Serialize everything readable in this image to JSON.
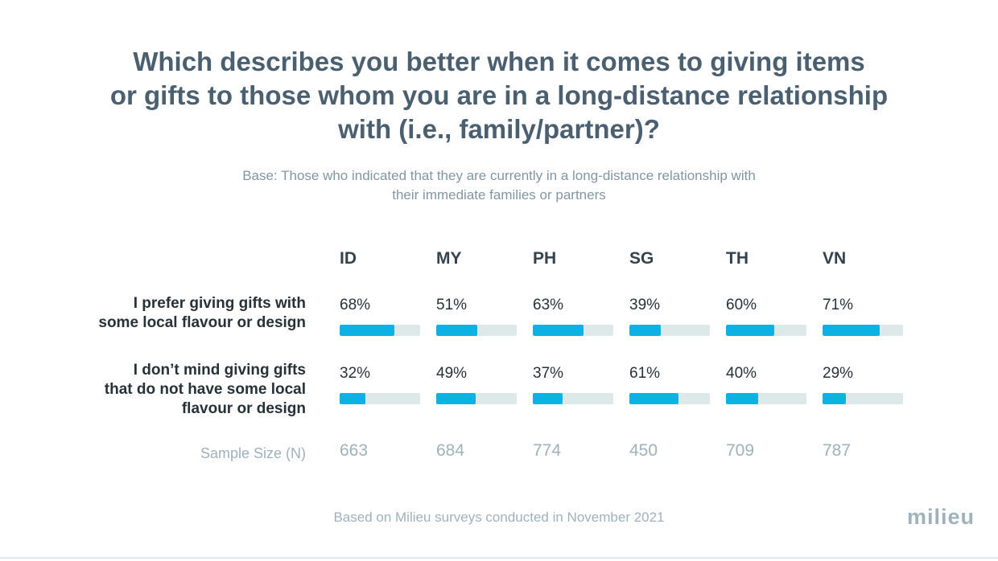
{
  "title": {
    "line1": "Which describes you better when it comes to giving items",
    "line2": "or gifts to those whom you are in a long-distance relationship",
    "line3": "with (i.e., family/partner)?"
  },
  "subtitle": {
    "line1": "Base: Those who indicated that they are currently in a long-distance relationship with",
    "line2": "their immediate families or partners"
  },
  "chart_data": {
    "type": "bar",
    "categories": [
      "ID",
      "MY",
      "PH",
      "SG",
      "TH",
      "VN"
    ],
    "series": [
      {
        "name_lines": [
          "I prefer giving gifts with",
          "some local flavour or design"
        ],
        "values": [
          68,
          51,
          63,
          39,
          60,
          71
        ],
        "labels": [
          "68%",
          "51%",
          "63%",
          "39%",
          "60%",
          "71%"
        ]
      },
      {
        "name_lines": [
          "I don’t mind giving gifts",
          "that do not have some local",
          "flavour or design"
        ],
        "values": [
          32,
          49,
          37,
          61,
          40,
          29
        ],
        "labels": [
          "32%",
          "49%",
          "37%",
          "61%",
          "40%",
          "29%"
        ]
      }
    ],
    "ylim": [
      0,
      100
    ],
    "sample_size_label": "Sample Size (N)",
    "sample_sizes": [
      "663",
      "684",
      "774",
      "450",
      "709",
      "787"
    ],
    "colors": {
      "fill": "#0bb2e3",
      "track": "#dde8e9"
    }
  },
  "footer": "Based on Milieu surveys conducted in November 2021",
  "logo": "milieu"
}
